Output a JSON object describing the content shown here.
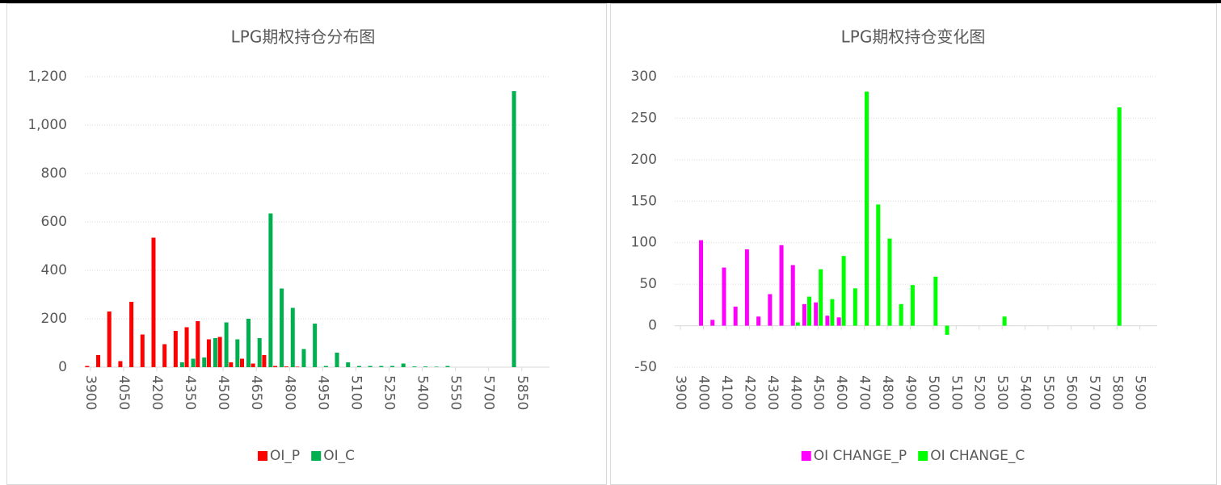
{
  "chart_data": [
    {
      "type": "bar",
      "title": "LPG期权持仓分布图",
      "x": [
        3900,
        3950,
        4000,
        4050,
        4100,
        4150,
        4200,
        4250,
        4300,
        4350,
        4400,
        4450,
        4500,
        4550,
        4600,
        4650,
        4700,
        4750,
        4800,
        4850,
        4900,
        4950,
        5000,
        5050,
        5100,
        5150,
        5200,
        5250,
        5300,
        5350,
        5400,
        5450,
        5500,
        5550,
        5600,
        5650,
        5700,
        5750,
        5800,
        5850,
        5900,
        5950
      ],
      "series": [
        {
          "name": "OI_P",
          "color": "#ff0000",
          "values": [
            5,
            50,
            230,
            25,
            270,
            135,
            535,
            95,
            150,
            165,
            190,
            115,
            125,
            20,
            35,
            15,
            50,
            5,
            3,
            2,
            0,
            0,
            0,
            0,
            0,
            0,
            0,
            0,
            0,
            0,
            0,
            0,
            0,
            0,
            0,
            0,
            0,
            0,
            0,
            0,
            0,
            0
          ]
        },
        {
          "name": "OI_C",
          "color": "#00b050",
          "values": [
            0,
            0,
            0,
            0,
            0,
            0,
            0,
            0,
            20,
            35,
            40,
            120,
            185,
            115,
            200,
            120,
            635,
            325,
            245,
            75,
            180,
            5,
            60,
            20,
            5,
            5,
            5,
            5,
            15,
            3,
            3,
            2,
            5,
            0,
            0,
            0,
            0,
            0,
            1140,
            0,
            0,
            0
          ]
        }
      ],
      "xlim": [
        3875,
        5975
      ],
      "xticks": [
        3900,
        4050,
        4200,
        4350,
        4500,
        4650,
        4800,
        4950,
        5100,
        5250,
        5400,
        5550,
        5700,
        5850
      ],
      "ylim": [
        0,
        1200
      ],
      "yticks": [
        0,
        200,
        400,
        600,
        800,
        {
          "value": 1000,
          "label": "1,000"
        },
        {
          "value": 1200,
          "label": "1,200"
        }
      ],
      "grid": true,
      "legend": "bottom"
    },
    {
      "type": "bar",
      "title": "LPG期权持仓变化图",
      "x": [
        3900,
        3950,
        4000,
        4050,
        4100,
        4150,
        4200,
        4250,
        4300,
        4350,
        4400,
        4450,
        4500,
        4550,
        4600,
        4650,
        4700,
        4750,
        4800,
        4850,
        4900,
        4950,
        5000,
        5050,
        5100,
        5150,
        5200,
        5250,
        5300,
        5350,
        5400,
        5450,
        5500,
        5550,
        5600,
        5650,
        5700,
        5750,
        5800,
        5850,
        5900,
        5950
      ],
      "series": [
        {
          "name": "OI CHANGE_P",
          "color": "#ff00ff",
          "values": [
            0,
            0,
            103,
            7,
            70,
            23,
            92,
            11,
            38,
            97,
            73,
            26,
            28,
            12,
            10,
            0,
            0,
            0,
            0,
            0,
            0,
            0,
            0,
            0,
            0,
            0,
            0,
            0,
            0,
            0,
            0,
            0,
            0,
            0,
            0,
            0,
            0,
            0,
            0,
            0,
            0,
            0
          ]
        },
        {
          "name": "OI CHANGE_C",
          "color": "#00ff00",
          "values": [
            0,
            0,
            0,
            0,
            0,
            0,
            0,
            0,
            0,
            0,
            4,
            35,
            68,
            32,
            84,
            45,
            282,
            146,
            105,
            26,
            49,
            0,
            59,
            -11,
            0,
            0,
            0,
            0,
            11,
            0,
            0,
            0,
            0,
            0,
            0,
            0,
            0,
            0,
            263,
            0,
            0,
            0
          ]
        }
      ],
      "xlim": [
        3875,
        5975
      ],
      "xticks": [
        3900,
        4000,
        4100,
        4200,
        4300,
        4400,
        4500,
        4600,
        4700,
        4800,
        4900,
        5000,
        5100,
        5200,
        5300,
        5400,
        5500,
        5600,
        5700,
        5800,
        5900
      ],
      "ylim": [
        -50,
        300
      ],
      "yticks": [
        -50,
        0,
        50,
        100,
        150,
        200,
        250,
        300
      ],
      "grid": true,
      "legend": "bottom"
    }
  ]
}
